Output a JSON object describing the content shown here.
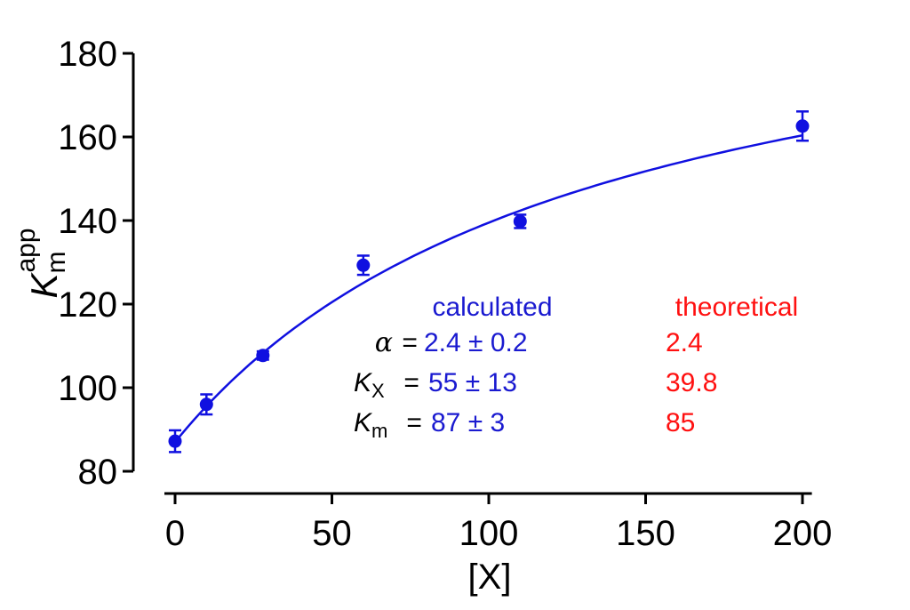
{
  "chart_data": {
    "type": "scatter",
    "xlabel": "[X]",
    "ylabel_main": "K",
    "ylabel_sub": "m",
    "ylabel_sup": "app",
    "xlim": [
      -5,
      203
    ],
    "ylim": [
      80,
      180
    ],
    "xticks": [
      0,
      50,
      100,
      150,
      200
    ],
    "yticks": [
      80,
      100,
      120,
      140,
      160,
      180
    ],
    "grid": false,
    "series": [
      {
        "points": [
          {
            "x": 0,
            "y": 87.2,
            "err": 2.6
          },
          {
            "x": 10,
            "y": 96.0,
            "err": 2.4
          },
          {
            "x": 28,
            "y": 107.7,
            "err": 1.0
          },
          {
            "x": 60,
            "y": 129.3,
            "err": 2.3
          },
          {
            "x": 110,
            "y": 139.8,
            "err": 1.6
          },
          {
            "x": 200,
            "y": 162.6,
            "err": 3.5
          }
        ]
      }
    ],
    "fit": {
      "Km": 87,
      "Kx": 55,
      "alpha": 2.4,
      "color": "#1010e0"
    },
    "colors": {
      "data": "#1010e0",
      "calculated": "#1a1ad0",
      "theoretical": "#ff1010",
      "axis": "#000000"
    }
  },
  "annotations": {
    "calculated_header": "calculated",
    "theoretical_header": "theoretical",
    "rows": [
      {
        "sym": "α",
        "sub": "",
        "eq": " = ",
        "calc": "2.4 ± 0.2",
        "theo": "2.4"
      },
      {
        "sym": "K",
        "sub": "X",
        "eq": " = ",
        "calc": "55 ± 13",
        "theo": "39.8"
      },
      {
        "sym": "K",
        "sub": "m",
        "eq": " = ",
        "calc": "87 ± 3",
        "theo": "85"
      }
    ]
  }
}
